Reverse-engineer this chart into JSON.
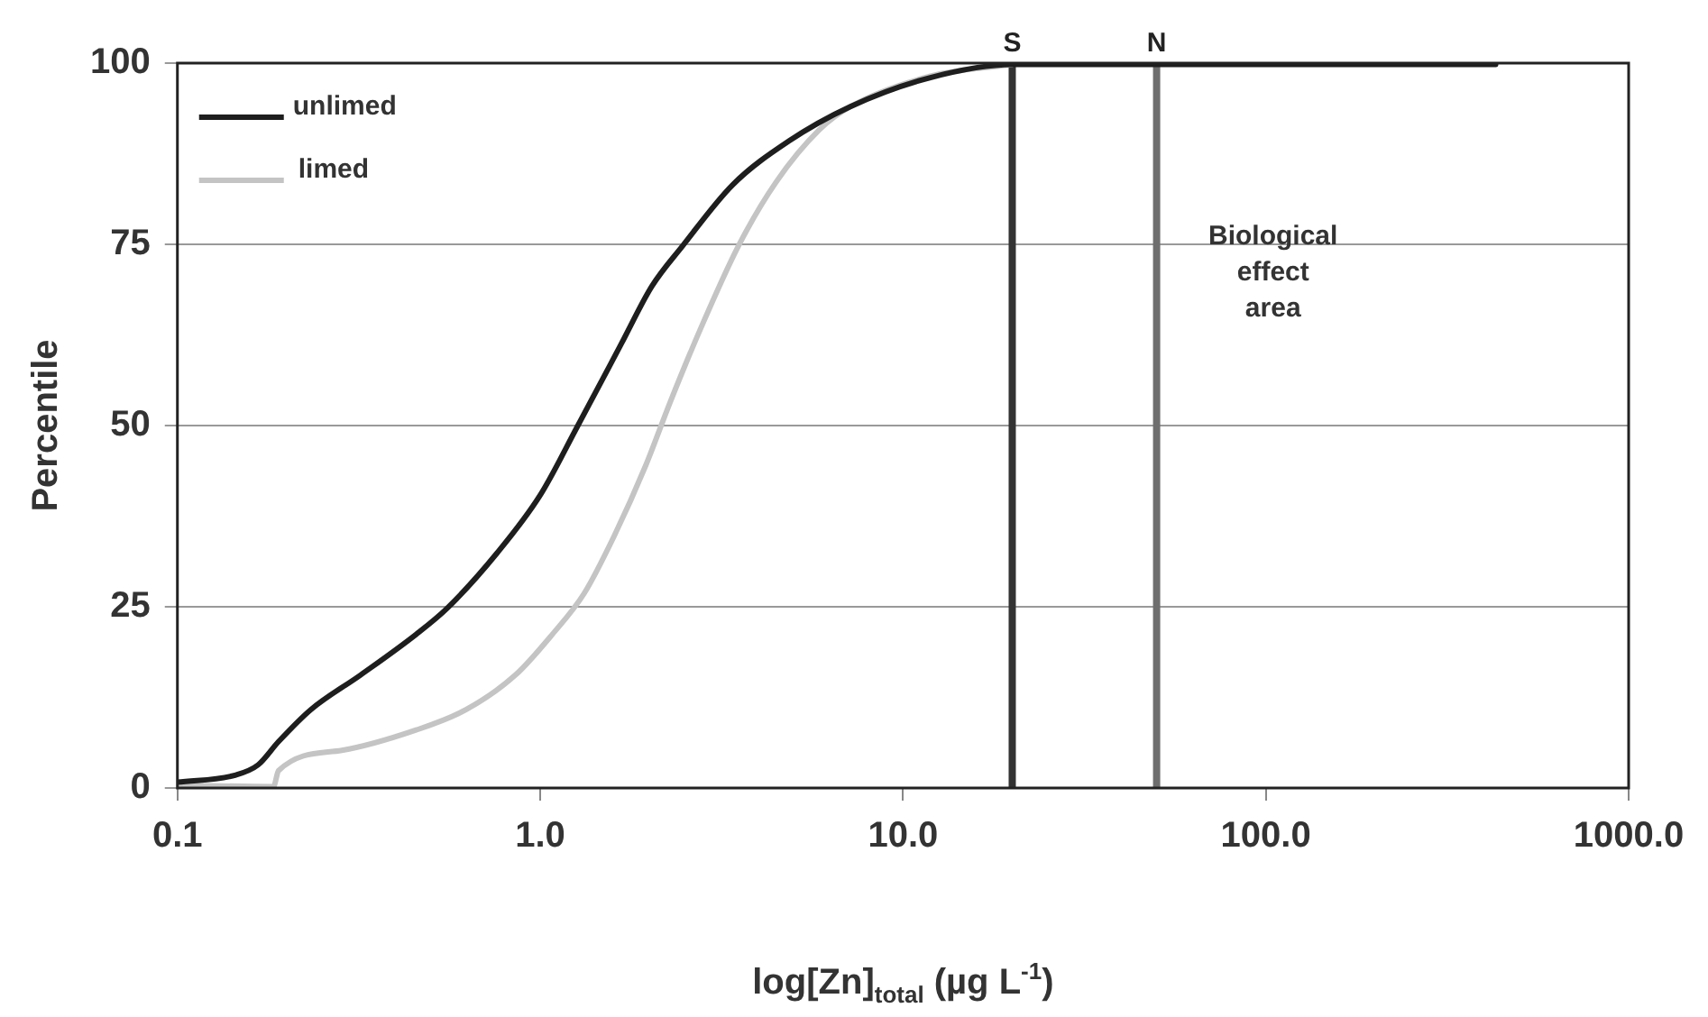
{
  "chart_data": {
    "type": "line",
    "xlabel": "log[Zn]$_{total}$ (µg L$^{-1}$)",
    "ylabel": "Percentile",
    "log": "x",
    "xlim": [
      0.1,
      1000
    ],
    "xticks": [
      {
        "value": 0.1,
        "label": "0.1"
      },
      {
        "value": 1,
        "label": "1.0"
      },
      {
        "value": 10,
        "label": "10.0"
      },
      {
        "value": 100,
        "label": "100.0"
      },
      {
        "value": 1000,
        "label": "1000.0"
      }
    ],
    "ylim": [
      0,
      100
    ],
    "yticks": [
      0,
      25,
      50,
      75,
      100
    ],
    "grid": "y",
    "legend": "top left",
    "marker": "none",
    "line_style": "solid",
    "series": [
      {
        "name": "unlimed",
        "color": "#1e1e1e",
        "x": [
          0.1,
          0.145,
          0.167,
          0.19,
          0.233,
          0.32,
          0.455,
          0.554,
          0.76,
          1.0,
          1.27,
          1.67,
          2.03,
          2.47,
          3.39,
          4.83,
          7.16,
          11.9,
          20,
          430
        ],
        "values": [
          0.8,
          1.8,
          3.2,
          6.4,
          10.8,
          15.6,
          21.2,
          24.8,
          32.4,
          40.4,
          50,
          61.2,
          69.2,
          74.8,
          83.2,
          89.2,
          94,
          98,
          99.8,
          99.8
        ]
      },
      {
        "name": "limed",
        "color": "#c4c4c4",
        "x": [
          0.1,
          0.184,
          0.19,
          0.284,
          0.455,
          0.624,
          0.855,
          1.08,
          1.32,
          1.6,
          1.95,
          2.28,
          2.78,
          3.52,
          4.47,
          5.88,
          7.16,
          11.9,
          20
        ],
        "values": [
          0.4,
          0.2,
          2.4,
          5.2,
          8,
          10.8,
          15.6,
          21.2,
          26.8,
          34.8,
          44.4,
          53.2,
          63.6,
          74.8,
          83.6,
          90.8,
          94,
          98.2,
          99.8
        ]
      }
    ],
    "ref_lines": [
      {
        "axis": "x",
        "value": 20,
        "label": "S",
        "color": "#333333"
      },
      {
        "axis": "x",
        "value": 50,
        "label": "N",
        "color": "#6e6e6e"
      }
    ],
    "annotations": [
      "Biological effect area"
    ]
  }
}
